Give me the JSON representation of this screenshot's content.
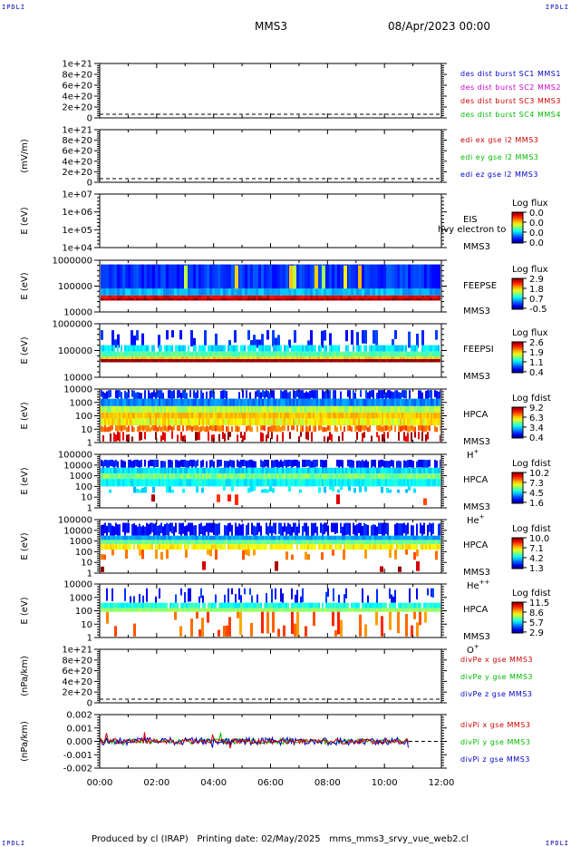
{
  "corner_label": "IPDLI",
  "header": {
    "mission": "MMS3",
    "datetime": "08/Apr/2023 00:00"
  },
  "footer": "Produced by cl (IRAP)   Printing date: 02/May/2025   mms_mms3_srvy_vue_web2.cl",
  "chart_data": {
    "type": "heatmap",
    "x_ticks": [
      "00:00",
      "02:00",
      "04:00",
      "06:00",
      "08:00",
      "10:00",
      "12:00"
    ],
    "xlim": [
      "00:00",
      "12:00"
    ],
    "panels": [
      {
        "id": "des",
        "ylabel": "",
        "ticks": [
          "1e+21",
          "8e+20",
          "6e+20",
          "4e+20",
          "2e+20",
          "0"
        ],
        "legend": [
          {
            "text": "des dist burst SC1 MMS1",
            "color": "#0000cc"
          },
          {
            "text": "des dist burst SC2 MMS2",
            "color": "#cc00cc"
          },
          {
            "text": "des dist burst SC3 MMS3",
            "color": "#cc0000"
          },
          {
            "text": "des dist burst SC4 MMS4",
            "color": "#00bb00"
          }
        ]
      },
      {
        "id": "edi",
        "ylabel": "(mV/m)",
        "ticks": [
          "1e+21",
          "8e+20",
          "6e+20",
          "4e+20",
          "2e+20",
          "0"
        ],
        "legend": [
          {
            "text": "edi ex gse l2 MMS3",
            "color": "#cc0000"
          },
          {
            "text": "edi ey gse l2 MMS3",
            "color": "#00bb00"
          },
          {
            "text": "edi ez gse l2 MMS3",
            "color": "#0000cc"
          }
        ]
      },
      {
        "id": "eis",
        "ylabel": "E (eV)",
        "ticks": [
          "1e+07",
          "1e+06",
          "1e+05",
          "1e+04"
        ],
        "instrument": [
          "EIS",
          "MMS3"
        ],
        "overlay": "hvy electron to",
        "colorbar": {
          "title": "Log flux",
          "labels": [
            "0.0",
            "0.0",
            "0.0",
            "0.0"
          ]
        }
      },
      {
        "id": "feepse",
        "ylabel": "E (eV)",
        "ticks": [
          "1000000",
          "100000",
          "10000"
        ],
        "instrument": [
          "FEEPSE",
          "MMS3"
        ],
        "colorbar": {
          "title": "Log flux",
          "labels": [
            "2.9",
            "1.8",
            "0.7",
            "-0.5"
          ]
        }
      },
      {
        "id": "feepsi",
        "ylabel": "E (eV)",
        "ticks": [
          "1000000",
          "100000",
          "10000"
        ],
        "instrument": [
          "FEEPSI",
          "MMS3"
        ],
        "colorbar": {
          "title": "Log flux",
          "labels": [
            "2.6",
            "1.9",
            "1.1",
            "0.4"
          ]
        }
      },
      {
        "id": "hpca_h",
        "ylabel": "E (eV)",
        "ticks": [
          "10000",
          "1000",
          "100",
          "10",
          "1"
        ],
        "instrument": [
          "HPCA",
          "MMS3"
        ],
        "species": "H",
        "charge": "+",
        "colorbar": {
          "title": "Log fdist",
          "labels": [
            "9.2",
            "6.3",
            "3.4",
            "0.4"
          ]
        }
      },
      {
        "id": "hpca_he",
        "ylabel": "E (eV)",
        "ticks": [
          "100000",
          "10000",
          "1000",
          "100",
          "10",
          "1"
        ],
        "instrument": [
          "HPCA",
          "MMS3"
        ],
        "species": "He",
        "charge": "+",
        "colorbar": {
          "title": "Log fdist",
          "labels": [
            "10.2",
            "7.3",
            "4.5",
            "1.6"
          ]
        }
      },
      {
        "id": "hpca_he2",
        "ylabel": "E (eV)",
        "ticks": [
          "100000",
          "10000",
          "1000",
          "100",
          "10",
          "1"
        ],
        "instrument": [
          "HPCA",
          "MMS3"
        ],
        "species": "He",
        "charge": "++",
        "colorbar": {
          "title": "Log fdist",
          "labels": [
            "10.0",
            "7.1",
            "4.2",
            "1.3"
          ]
        }
      },
      {
        "id": "hpca_o",
        "ylabel": "E (eV)",
        "ticks": [
          "10000",
          "1000",
          "100",
          "10",
          "1"
        ],
        "instrument": [
          "HPCA",
          "MMS3"
        ],
        "species": "O",
        "charge": "+",
        "colorbar": {
          "title": "Log fdist",
          "labels": [
            "11.5",
            "8.6",
            "5.7",
            "2.9"
          ]
        }
      },
      {
        "id": "divpe",
        "ylabel": "(nPa/km)",
        "ticks": [
          "1e+21",
          "8e+20",
          "6e+20",
          "4e+20",
          "2e+20",
          "0"
        ],
        "legend": [
          {
            "text": "divPe x gse MMS3",
            "color": "#cc0000"
          },
          {
            "text": "divPe y gse MMS3",
            "color": "#00bb00"
          },
          {
            "text": "divPe z gse MMS3",
            "color": "#0000cc"
          }
        ]
      },
      {
        "id": "divpi",
        "ylabel": "(nPa/km)",
        "ticks": [
          "0.002",
          "0.001",
          "0.000",
          "-0.001",
          "-0.002"
        ],
        "legend": [
          {
            "text": "divPi x gse MMS3",
            "color": "#cc0000"
          },
          {
            "text": "divPi y gse MMS3",
            "color": "#00bb00"
          },
          {
            "text": "divPi z gse MMS3",
            "color": "#0000cc"
          }
        ]
      }
    ]
  }
}
